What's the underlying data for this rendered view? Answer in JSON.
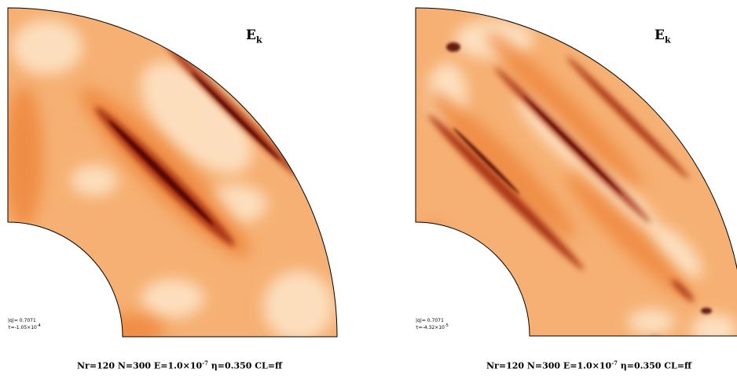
{
  "panels": [
    {
      "label_main": "E",
      "label_sub": "k",
      "info_line1": "|q|= 0.7071",
      "info_tau_prefix": "τ=-1.05×10",
      "info_tau_exp": "-4",
      "caption_pre": "Nr=120  N=300  E=1.0×10",
      "caption_exp": "-7",
      "caption_post": " η=0.350  CL=ff"
    },
    {
      "label_main": "E",
      "label_sub": "k",
      "info_line1": "|q|= 0.7071",
      "info_tau_prefix": "τ=-4.32×10",
      "info_tau_exp": "-5",
      "caption_pre": "Nr=120  N=300  E=1.0×10",
      "caption_exp": "-7",
      "caption_post": " η=0.350  CL=ff"
    }
  ],
  "colors": {
    "base": "#f6b073",
    "light": "#fde3c6",
    "mid": "#ef8a43",
    "dark": "#a32a08",
    "darkest": "#4a0600",
    "outline": "#000000"
  }
}
